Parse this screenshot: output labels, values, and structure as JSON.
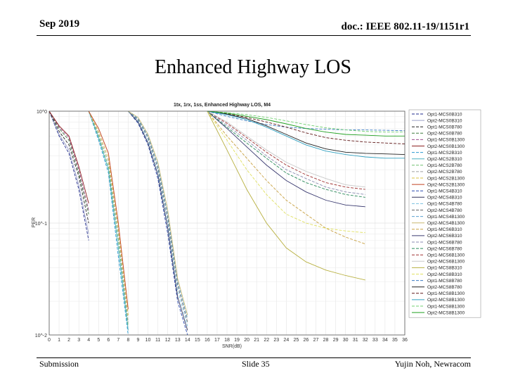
{
  "header": {
    "date": "Sep 2019",
    "doc_id": "doc.: IEEE 802.11-19/1151r1"
  },
  "slide": {
    "title": "Enhanced Highway LOS"
  },
  "footer": {
    "left": "Submission",
    "center": "Slide 35",
    "right": "Yujin Noh, Newracom"
  },
  "chart_data": {
    "type": "line",
    "title": "1tx, 1rx, 1ss, Enhanced Highway LOS, M4",
    "xlabel": "SNR(dB)",
    "ylabel": "PER",
    "x_scale": "linear",
    "y_scale": "log",
    "xlim": [
      0,
      36
    ],
    "ylim": [
      0.01,
      1
    ],
    "x_ticks": [
      0,
      1,
      2,
      3,
      4,
      5,
      6,
      7,
      8,
      9,
      10,
      11,
      12,
      13,
      14,
      15,
      16,
      17,
      18,
      19,
      20,
      21,
      22,
      23,
      24,
      25,
      26,
      27,
      28,
      29,
      30,
      31,
      32,
      33,
      34,
      35,
      36
    ],
    "y_tick_labels": [
      "10^0",
      "10^-1",
      "10^-2"
    ],
    "y_tick_values": [
      1,
      0.1,
      0.01
    ],
    "grid": true,
    "legend_position": "right",
    "series": [
      {
        "name": "Opt1-MCS0B310",
        "color": "#1f2a8c",
        "dash": "4,2",
        "x": [
          0,
          1,
          2,
          3,
          4
        ],
        "y": [
          1,
          0.6,
          0.42,
          0.2,
          0.07
        ]
      },
      {
        "name": "Opt2-MCS0B310",
        "color": "#9aa0c8",
        "dash": "",
        "x": [
          0,
          1,
          2,
          3,
          4
        ],
        "y": [
          1,
          0.62,
          0.45,
          0.22,
          0.08
        ]
      },
      {
        "name": "Opt1-MCS0B780",
        "color": "#222222",
        "dash": "4,2",
        "x": [
          0,
          1,
          2,
          3,
          4
        ],
        "y": [
          1,
          0.66,
          0.5,
          0.26,
          0.1
        ]
      },
      {
        "name": "Opt2-MCS0B780",
        "color": "#3d7a3d",
        "dash": "4,2",
        "x": [
          0,
          1,
          2,
          3,
          4
        ],
        "y": [
          1,
          0.7,
          0.55,
          0.28,
          0.12
        ]
      },
      {
        "name": "Opt1-MCS0B1300",
        "color": "#9b4a8c",
        "dash": "4,2",
        "x": [
          0,
          1,
          2,
          3,
          4
        ],
        "y": [
          1,
          0.72,
          0.58,
          0.3,
          0.13
        ]
      },
      {
        "name": "Opt2-MCS0B1300",
        "color": "#8c2020",
        "dash": "",
        "x": [
          0,
          1,
          2,
          3,
          4
        ],
        "y": [
          1,
          0.74,
          0.6,
          0.32,
          0.15
        ]
      },
      {
        "name": "Opt1-MCS2B310",
        "color": "#2a9ad0",
        "dash": "4,2",
        "x": [
          4,
          5,
          6,
          7,
          8
        ],
        "y": [
          1,
          0.55,
          0.28,
          0.05,
          0.01
        ]
      },
      {
        "name": "Opt2-MCS2B310",
        "color": "#4fb0c0",
        "dash": "",
        "x": [
          4,
          5,
          6,
          7,
          8
        ],
        "y": [
          1,
          0.58,
          0.3,
          0.06,
          0.011
        ]
      },
      {
        "name": "Opt1-MCS2B780",
        "color": "#6fbf6f",
        "dash": "4,2",
        "x": [
          4,
          5,
          6,
          7,
          8
        ],
        "y": [
          1,
          0.6,
          0.32,
          0.07,
          0.012
        ]
      },
      {
        "name": "Opt2-MCS2B780",
        "color": "#a0a0a0",
        "dash": "4,2",
        "x": [
          4,
          5,
          6,
          7,
          8
        ],
        "y": [
          1,
          0.63,
          0.35,
          0.08,
          0.013
        ]
      },
      {
        "name": "Opt1-MCS2B1300",
        "color": "#d8c040",
        "dash": "4,2",
        "x": [
          4,
          5,
          6,
          7,
          8
        ],
        "y": [
          1,
          0.66,
          0.38,
          0.09,
          0.015
        ]
      },
      {
        "name": "Opt2-MCS2B1300",
        "color": "#c04020",
        "dash": "",
        "x": [
          4,
          5,
          6,
          7,
          8
        ],
        "y": [
          1,
          0.7,
          0.42,
          0.1,
          0.017
        ]
      },
      {
        "name": "Opt1-MCS4B310",
        "color": "#2a4ab0",
        "dash": "4,2",
        "x": [
          8,
          9,
          10,
          11,
          12,
          13,
          14
        ],
        "y": [
          1,
          0.78,
          0.5,
          0.25,
          0.08,
          0.02,
          0.01
        ]
      },
      {
        "name": "Opt2-MCS4B310",
        "color": "#33335a",
        "dash": "",
        "x": [
          8,
          9,
          10,
          11,
          12,
          13,
          14
        ],
        "y": [
          1,
          0.8,
          0.52,
          0.27,
          0.09,
          0.022,
          0.011
        ]
      },
      {
        "name": "Opt1-MCS4B780",
        "color": "#7ac0e0",
        "dash": "4,2",
        "x": [
          8,
          9,
          10,
          11,
          12,
          13,
          14
        ],
        "y": [
          1,
          0.82,
          0.55,
          0.29,
          0.1,
          0.025,
          0.012
        ]
      },
      {
        "name": "Opt2-MCS4B780",
        "color": "#666666",
        "dash": "4,2",
        "x": [
          8,
          9,
          10,
          11,
          12,
          13,
          14
        ],
        "y": [
          1,
          0.84,
          0.58,
          0.31,
          0.11,
          0.028,
          0.013
        ]
      },
      {
        "name": "Opt1-MCS4B1300",
        "color": "#5aa0d0",
        "dash": "4,2",
        "x": [
          8,
          9,
          10,
          11,
          12,
          13,
          14
        ],
        "y": [
          1,
          0.86,
          0.6,
          0.33,
          0.12,
          0.03,
          0.014
        ]
      },
      {
        "name": "Opt2-MCS4B1300",
        "color": "#c8b870",
        "dash": "",
        "x": [
          8,
          9,
          10,
          11,
          12,
          13,
          14
        ],
        "y": [
          1,
          0.88,
          0.62,
          0.35,
          0.13,
          0.032,
          0.015
        ]
      },
      {
        "name": "Opt1-MCS6B310",
        "color": "#c8a040",
        "dash": "4,2",
        "x": [
          16,
          18,
          20,
          22,
          24,
          26,
          28,
          30,
          32
        ],
        "y": [
          1,
          0.6,
          0.38,
          0.24,
          0.16,
          0.12,
          0.09,
          0.075,
          0.065
        ]
      },
      {
        "name": "Opt2-MCS6B310",
        "color": "#3a3a70",
        "dash": "",
        "x": [
          16,
          18,
          20,
          22,
          24,
          26,
          28,
          30,
          32
        ],
        "y": [
          1,
          0.7,
          0.48,
          0.33,
          0.24,
          0.19,
          0.16,
          0.145,
          0.14
        ]
      },
      {
        "name": "Opt1-MCS6B780",
        "color": "#8a8ab0",
        "dash": "4,2",
        "x": [
          16,
          18,
          20,
          22,
          24,
          26,
          28,
          30,
          32
        ],
        "y": [
          1,
          0.75,
          0.55,
          0.4,
          0.3,
          0.25,
          0.21,
          0.19,
          0.18
        ]
      },
      {
        "name": "Opt2-MCS6B780",
        "color": "#2a8a5a",
        "dash": "4,2",
        "x": [
          16,
          18,
          20,
          22,
          24,
          26,
          28,
          30,
          32
        ],
        "y": [
          1,
          0.72,
          0.52,
          0.38,
          0.28,
          0.23,
          0.2,
          0.18,
          0.17
        ]
      },
      {
        "name": "Opt1-MCS6B1300",
        "color": "#a03030",
        "dash": "4,2",
        "x": [
          16,
          18,
          20,
          22,
          24,
          26,
          28,
          30,
          32
        ],
        "y": [
          1,
          0.78,
          0.58,
          0.43,
          0.33,
          0.27,
          0.23,
          0.21,
          0.2
        ]
      },
      {
        "name": "Opt2-MCS6B1300",
        "color": "#c8c8c8",
        "dash": "",
        "x": [
          16,
          18,
          20,
          22,
          24,
          26,
          28,
          30,
          32
        ],
        "y": [
          1,
          0.8,
          0.6,
          0.45,
          0.35,
          0.29,
          0.25,
          0.22,
          0.21
        ]
      },
      {
        "name": "Opt1-MCS8B310",
        "color": "#b8b040",
        "dash": "",
        "x": [
          16,
          18,
          20,
          22,
          24,
          26,
          28,
          30,
          32
        ],
        "y": [
          1,
          0.45,
          0.2,
          0.1,
          0.06,
          0.045,
          0.038,
          0.034,
          0.031
        ]
      },
      {
        "name": "Opt2-MCS8B310",
        "color": "#e0e060",
        "dash": "4,2",
        "x": [
          16,
          18,
          20,
          22,
          24,
          26,
          28,
          30,
          32
        ],
        "y": [
          1,
          0.55,
          0.3,
          0.18,
          0.12,
          0.1,
          0.09,
          0.085,
          0.082
        ]
      },
      {
        "name": "Opt1-MCS8B780",
        "color": "#3a7ac0",
        "dash": "4,2",
        "x": [
          16,
          18,
          20,
          22,
          24,
          26,
          28,
          30,
          32,
          34,
          36
        ],
        "y": [
          1,
          0.9,
          0.82,
          0.76,
          0.72,
          0.7,
          0.69,
          0.68,
          0.68,
          0.675,
          0.67
        ]
      },
      {
        "name": "Opt2-MCS8B780",
        "color": "#202020",
        "dash": "",
        "x": [
          16,
          18,
          20,
          22,
          24,
          26,
          28,
          30,
          32,
          34,
          36
        ],
        "y": [
          1,
          0.94,
          0.86,
          0.74,
          0.62,
          0.52,
          0.46,
          0.43,
          0.42,
          0.415,
          0.41
        ]
      },
      {
        "name": "Opt1-MCS8B1300",
        "color": "#601818",
        "dash": "4,2",
        "x": [
          16,
          18,
          20,
          22,
          24,
          26,
          28,
          30,
          32,
          34,
          36
        ],
        "y": [
          1,
          0.95,
          0.88,
          0.8,
          0.72,
          0.64,
          0.58,
          0.55,
          0.53,
          0.52,
          0.51
        ]
      },
      {
        "name": "Opt2-MCS8B1300",
        "color": "#30a0c0",
        "dash": "",
        "x": [
          16,
          18,
          20,
          22,
          24,
          26,
          28,
          30,
          32,
          34,
          36
        ],
        "y": [
          1,
          0.93,
          0.84,
          0.72,
          0.6,
          0.5,
          0.44,
          0.41,
          0.39,
          0.38,
          0.38
        ]
      },
      {
        "name": "Opt1-MCS8B1300",
        "color": "#70d070",
        "dash": "4,2",
        "x": [
          16,
          18,
          20,
          22,
          24,
          26,
          28,
          30,
          32,
          34,
          36
        ],
        "y": [
          1,
          0.97,
          0.93,
          0.88,
          0.82,
          0.76,
          0.71,
          0.68,
          0.66,
          0.65,
          0.65
        ]
      },
      {
        "name": "Opt2-MCS8B1300",
        "color": "#20a020",
        "dash": "",
        "x": [
          16,
          18,
          20,
          22,
          24,
          26,
          28,
          30,
          32,
          34,
          36
        ],
        "y": [
          1,
          0.96,
          0.9,
          0.84,
          0.77,
          0.7,
          0.65,
          0.62,
          0.61,
          0.6,
          0.6
        ]
      }
    ]
  }
}
